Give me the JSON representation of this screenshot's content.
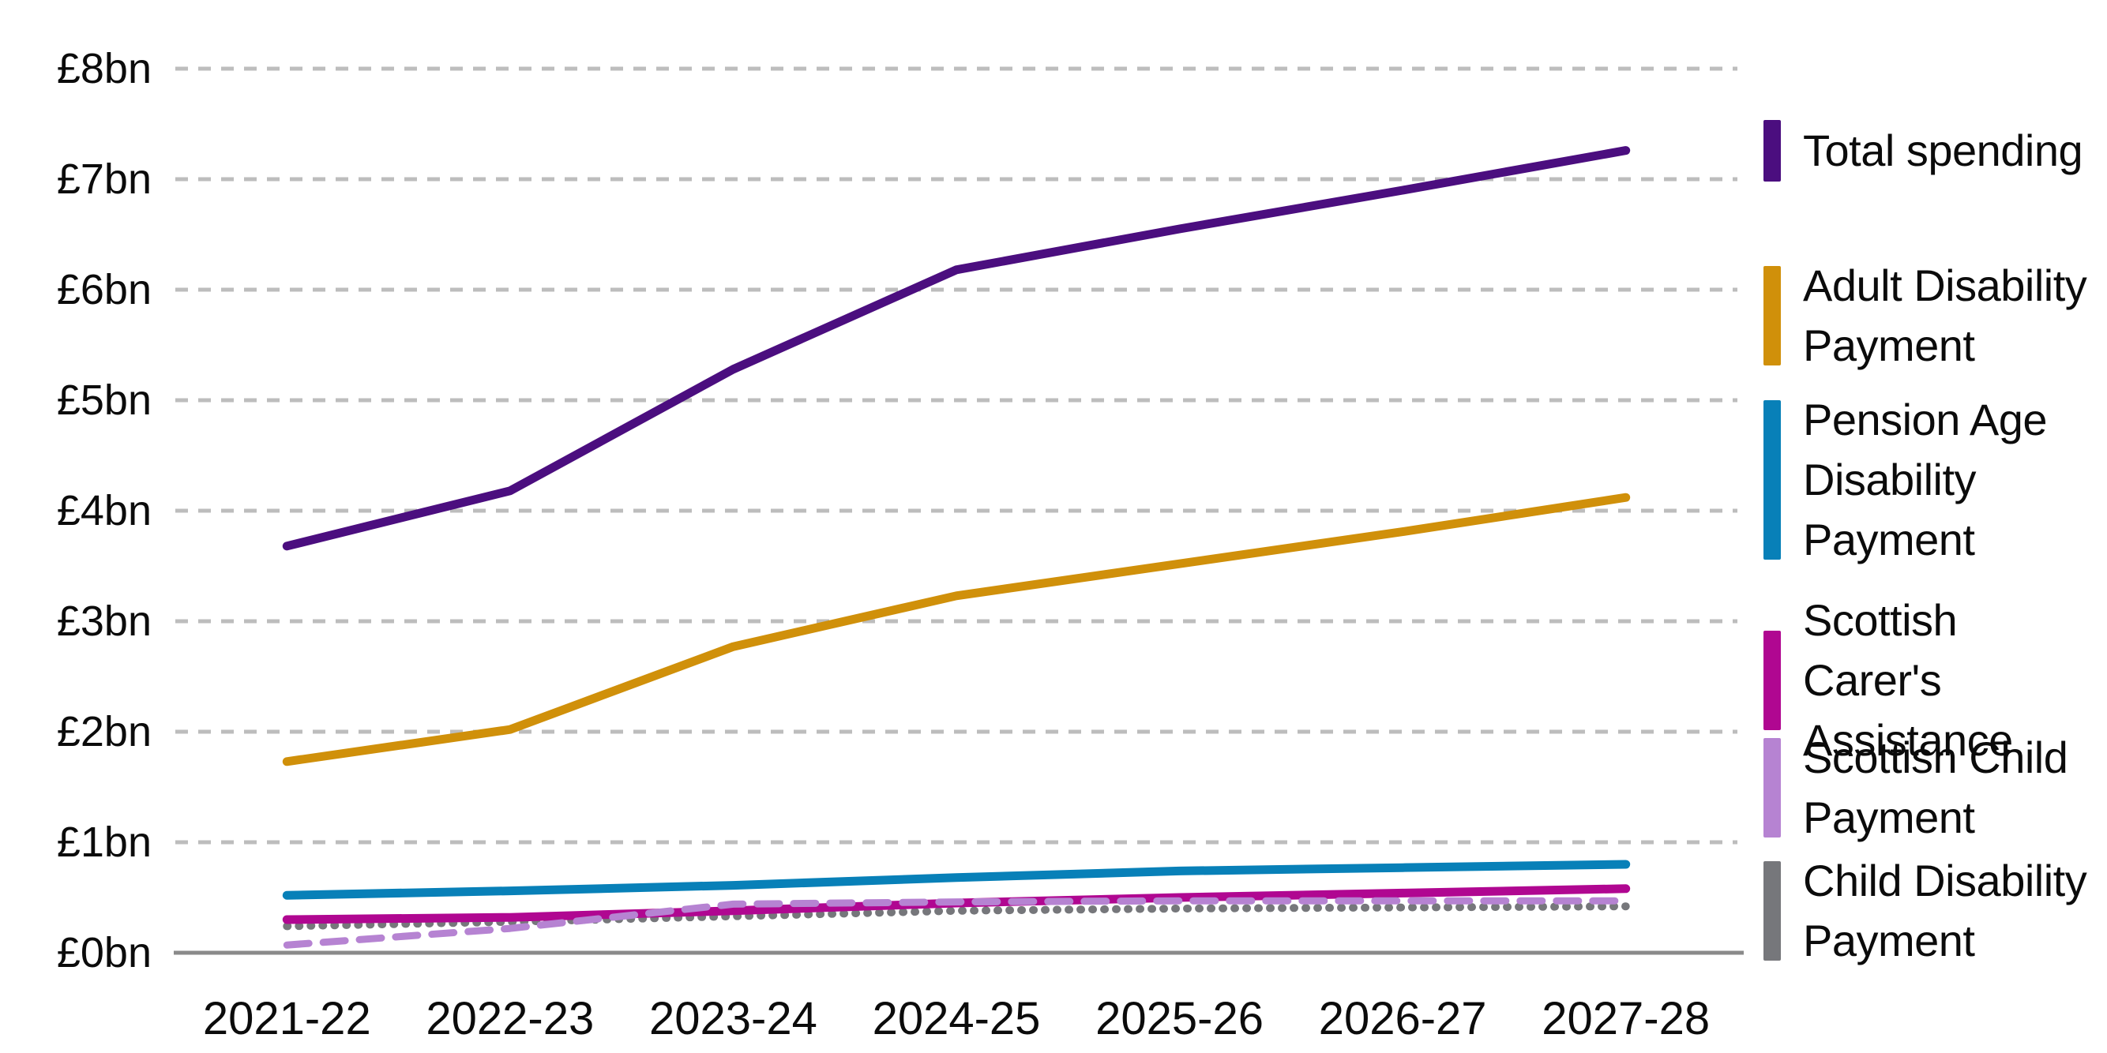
{
  "chart_data": {
    "type": "line",
    "title": "",
    "unit": "£bn",
    "categories": [
      "2021-22",
      "2022-23",
      "2023-24",
      "2024-25",
      "2025-26",
      "2026-27",
      "2027-28"
    ],
    "y_ticks": [
      "£0bn",
      "£1bn",
      "£2bn",
      "£3bn",
      "£4bn",
      "£5bn",
      "£6bn",
      "£7bn",
      "£8bn"
    ],
    "ylim": [
      0,
      8
    ],
    "grid": "horizontal-dashed",
    "legend_position": "right",
    "series": [
      {
        "name": "Total spending",
        "legend_lines": [
          "Total spending"
        ],
        "color": "#4B0E7F",
        "line_style": "solid",
        "values": [
          3.68,
          4.18,
          5.28,
          6.18,
          6.55,
          6.9,
          7.26
        ]
      },
      {
        "name": "Adult Disability Payment",
        "legend_lines": [
          "Adult Disability",
          "Payment"
        ],
        "color": "#D0900A",
        "line_style": "solid",
        "values": [
          1.73,
          2.02,
          2.77,
          3.23,
          3.52,
          3.81,
          4.12
        ]
      },
      {
        "name": "Pension Age Disability Payment",
        "legend_lines": [
          "Pension Age",
          "Disability",
          "Payment"
        ],
        "color": "#0880B8",
        "line_style": "solid",
        "values": [
          0.52,
          0.56,
          0.61,
          0.68,
          0.74,
          0.77,
          0.8
        ]
      },
      {
        "name": "Scottish Carer's Assistance",
        "legend_lines": [
          "Scottish Carer's",
          "Assistance"
        ],
        "color": "#B00791",
        "line_style": "solid",
        "values": [
          0.3,
          0.32,
          0.38,
          0.45,
          0.5,
          0.54,
          0.58
        ]
      },
      {
        "name": "Scottish Child Payment",
        "legend_lines": [
          "Scottish Child",
          "Payment"
        ],
        "color": "#B683D2",
        "line_style": "dashed",
        "values": [
          0.07,
          0.22,
          0.44,
          0.46,
          0.47,
          0.47,
          0.47
        ]
      },
      {
        "name": "Child Disability Payment",
        "legend_lines": [
          "Child Disability",
          "Payment"
        ],
        "color": "#76777B",
        "line_style": "dotted",
        "values": [
          0.24,
          0.28,
          0.33,
          0.38,
          0.4,
          0.41,
          0.42
        ]
      }
    ],
    "colors": {
      "gridline": "#BDBDBD",
      "axis_line": "#8A8A8A",
      "text": "#0B0B0B"
    }
  }
}
